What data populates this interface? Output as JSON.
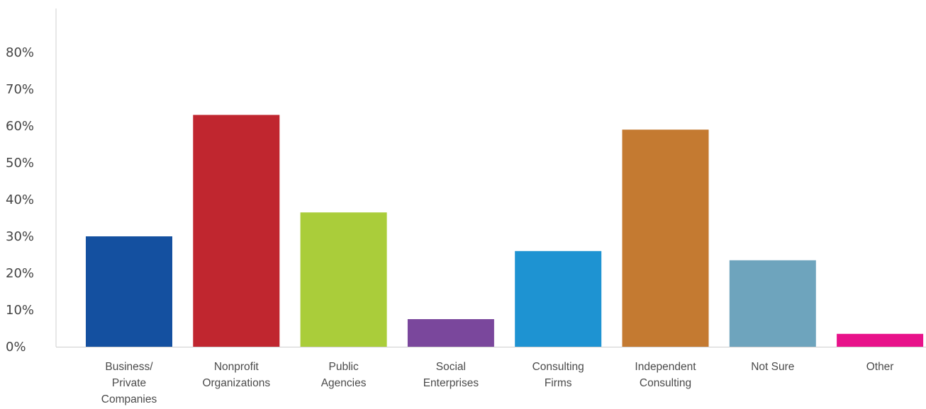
{
  "chart_data": {
    "type": "bar",
    "title": "",
    "xlabel": "",
    "ylabel": "",
    "ylim": [
      0,
      90
    ],
    "y_ticks": [
      "0%",
      "10%",
      "20%",
      "30%",
      "40%",
      "50%",
      "60%",
      "70%",
      "80%"
    ],
    "y_tick_values": [
      0,
      10,
      20,
      30,
      40,
      50,
      60,
      70,
      80
    ],
    "categories": [
      "Business/\nPrivate\nCompanies",
      "Nonprofit\nOrganizations",
      "Public\nAgencies",
      "Social\nEnterprises",
      "Consulting\nFirms",
      "Independent\nConsulting",
      "Not Sure",
      "Other"
    ],
    "values": [
      30,
      63,
      36.5,
      7.5,
      26,
      59,
      23.5,
      3.5
    ],
    "colors": [
      "#1450a0",
      "#c0262f",
      "#aacd3a",
      "#7a479c",
      "#1e93d2",
      "#c47a31",
      "#6ea4bd",
      "#e8128a"
    ],
    "grid": false,
    "legend": "none"
  }
}
